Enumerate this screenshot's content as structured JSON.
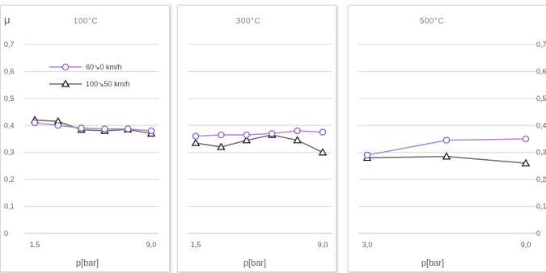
{
  "y_label": "μ",
  "colors": {
    "series1": "#a98bd3",
    "series2": "#6b6b6b",
    "grid": "#d9d9d9"
  },
  "legend": {
    "series1": "60↘0 km/h",
    "series2": "100↘50 km/h"
  },
  "chart_data": [
    {
      "type": "line",
      "title": "100°C",
      "xlabel": "p[bar]",
      "ylabel": "μ",
      "ylim": [
        0,
        0.7
      ],
      "yticks": [
        "0",
        "0,1",
        "0,2",
        "0,3",
        "0,4",
        "0,5",
        "0,6",
        "0,7"
      ],
      "x_tick_labels": [
        "1,5",
        "9,0"
      ],
      "series": [
        {
          "name": "60↘0 km/h",
          "values": [
            0.41,
            0.4,
            0.39,
            0.387,
            0.387,
            0.38
          ]
        },
        {
          "name": "100↘50 km/h",
          "values": [
            0.42,
            0.415,
            0.384,
            0.38,
            0.385,
            0.37
          ]
        }
      ]
    },
    {
      "type": "line",
      "title": "300°C",
      "xlabel": "p[bar]",
      "ylim": [
        0,
        0.7
      ],
      "x_tick_labels": [
        "1,5",
        "9,0"
      ],
      "series": [
        {
          "name": "60↘0 km/h",
          "values": [
            0.36,
            0.365,
            0.365,
            0.37,
            0.38,
            0.375
          ]
        },
        {
          "name": "100↘50 km/h",
          "values": [
            0.335,
            0.32,
            0.345,
            0.365,
            0.345,
            0.3
          ]
        }
      ]
    },
    {
      "type": "line",
      "title": "500°C",
      "xlabel": "p[bar]",
      "ylim": [
        0,
        0.7
      ],
      "yticks": [
        "0",
        "0,1",
        "0,2",
        "0,3",
        "0,4",
        "0,5",
        "0,6",
        "0,7"
      ],
      "x_tick_labels": [
        "3,0",
        "9,0"
      ],
      "series": [
        {
          "name": "60↘0 km/h",
          "values": [
            0.29,
            0.345,
            0.35
          ]
        },
        {
          "name": "100↘50 km/h",
          "values": [
            0.28,
            0.285,
            0.26
          ]
        }
      ]
    }
  ]
}
